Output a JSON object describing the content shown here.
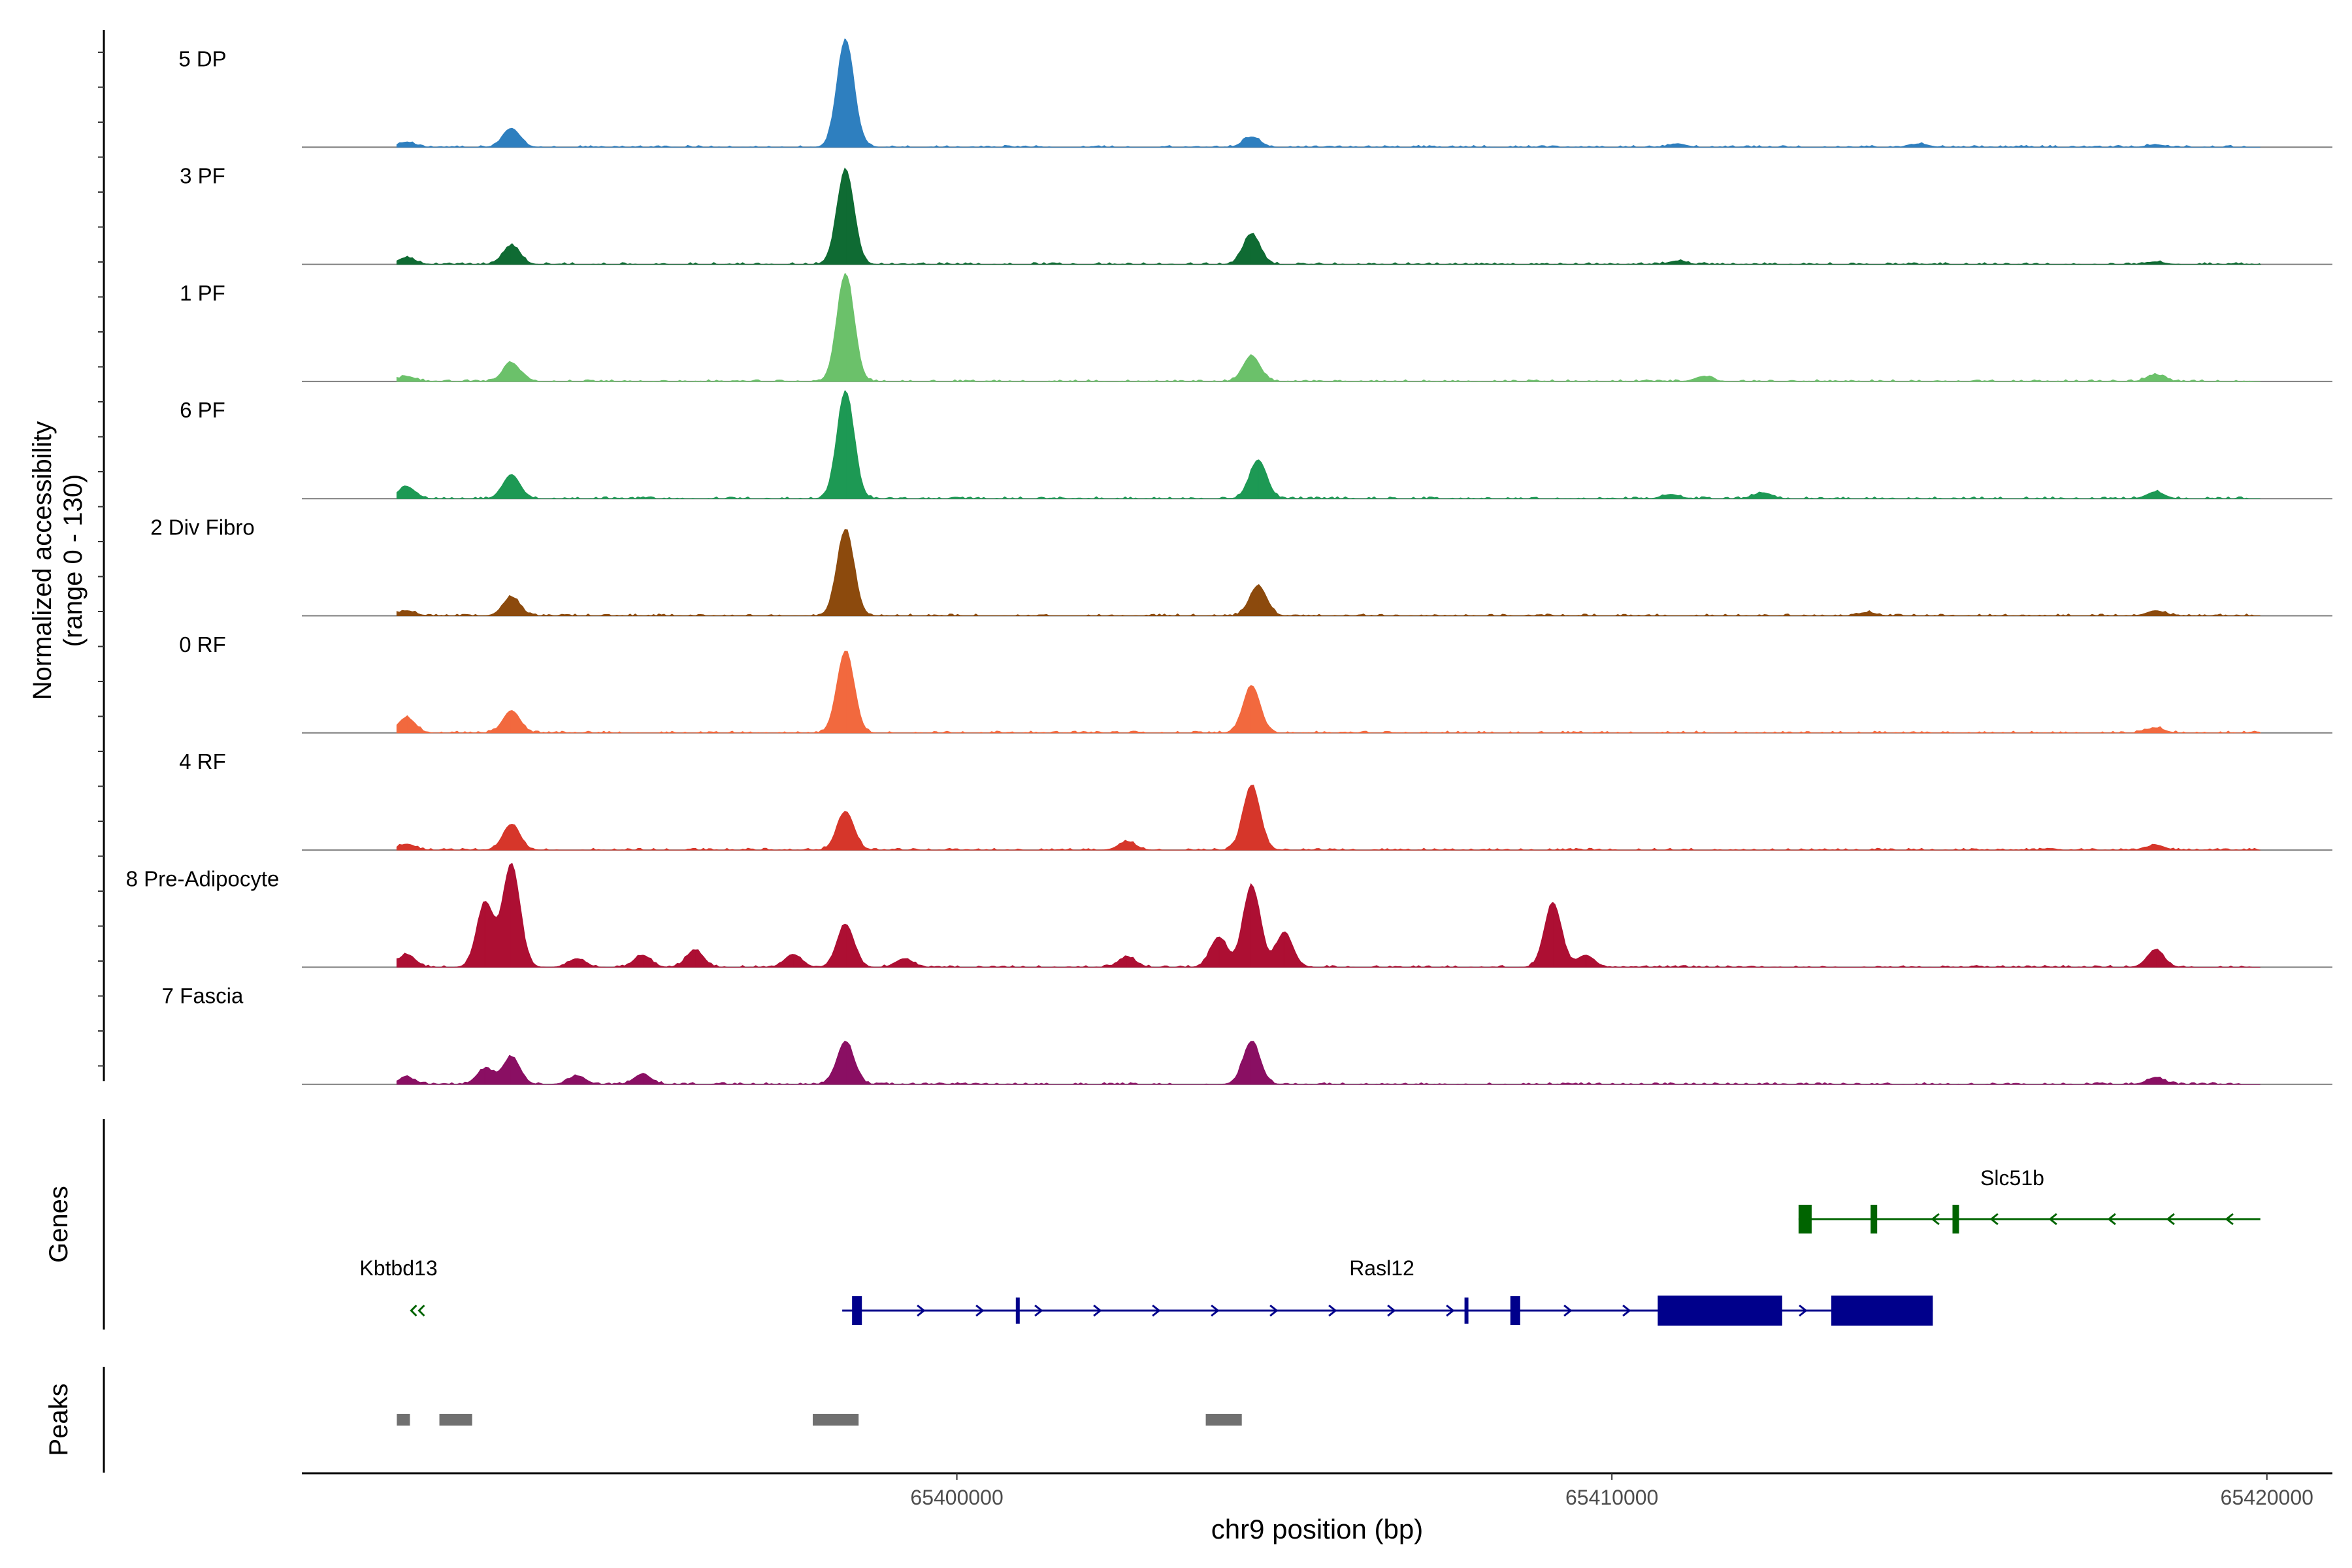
{
  "chart_data": {
    "type": "area",
    "title": "",
    "ylabel_line1": "Normalized accessibility",
    "ylabel_line2": "(range 0 - 130)",
    "xlabel": "chr9 position (bp)",
    "xlim": [
      65390000,
      65421000
    ],
    "ylim": [
      0,
      130
    ],
    "x_ticks": [
      65400000,
      65410000,
      65420000
    ],
    "x_tick_labels": [
      "65400000",
      "65410000",
      "65420000"
    ],
    "tracks": [
      {
        "name": "5 DP",
        "color": "#2e7fbf",
        "peaks": [
          [
            65391600,
            6
          ],
          [
            65393200,
            22
          ],
          [
            65398300,
            125
          ],
          [
            65404500,
            12
          ],
          [
            65411000,
            4
          ],
          [
            65414700,
            4
          ],
          [
            65418300,
            3
          ]
        ]
      },
      {
        "name": "3 PF",
        "color": "#0f6b33",
        "peaks": [
          [
            65391600,
            8
          ],
          [
            65393200,
            22
          ],
          [
            65398300,
            110
          ],
          [
            65404500,
            35
          ],
          [
            65411000,
            4
          ],
          [
            65418300,
            3
          ]
        ]
      },
      {
        "name": "1 PF",
        "color": "#6bc16a",
        "peaks": [
          [
            65391600,
            6
          ],
          [
            65393200,
            22
          ],
          [
            65398300,
            125
          ],
          [
            65404500,
            30
          ],
          [
            65411400,
            6
          ],
          [
            65418300,
            8
          ]
        ]
      },
      {
        "name": "6 PF",
        "color": "#1d9954",
        "peaks": [
          [
            65391600,
            14
          ],
          [
            65393200,
            28
          ],
          [
            65398300,
            125
          ],
          [
            65404600,
            45
          ],
          [
            65410900,
            5
          ],
          [
            65412300,
            7
          ],
          [
            65418300,
            8
          ]
        ]
      },
      {
        "name": "2 Div Fibro",
        "color": "#8c4a0d",
        "peaks": [
          [
            65391600,
            6
          ],
          [
            65393200,
            22
          ],
          [
            65398300,
            100
          ],
          [
            65404600,
            35
          ],
          [
            65413900,
            4
          ],
          [
            65418300,
            6
          ]
        ]
      },
      {
        "name": "0 RF",
        "color": "#f2693e",
        "peaks": [
          [
            65391600,
            18
          ],
          [
            65393200,
            26
          ],
          [
            65398300,
            95
          ],
          [
            65404500,
            55
          ],
          [
            65418300,
            6
          ]
        ]
      },
      {
        "name": "4 RF",
        "color": "#d6362a",
        "peaks": [
          [
            65391600,
            7
          ],
          [
            65393200,
            30
          ],
          [
            65398300,
            45
          ],
          [
            65402600,
            10
          ],
          [
            65404500,
            75
          ],
          [
            65418300,
            6
          ]
        ]
      },
      {
        "name": "8 Pre-Adipocyte",
        "color": "#ad0f33",
        "peaks": [
          [
            65391600,
            15
          ],
          [
            65392800,
            75
          ],
          [
            65393200,
            120
          ],
          [
            65394200,
            10
          ],
          [
            65395200,
            14
          ],
          [
            65396000,
            20
          ],
          [
            65397500,
            15
          ],
          [
            65398300,
            50
          ],
          [
            65399200,
            10
          ],
          [
            65402600,
            12
          ],
          [
            65404000,
            35
          ],
          [
            65404500,
            95
          ],
          [
            65405000,
            40
          ],
          [
            65409100,
            75
          ],
          [
            65409600,
            14
          ],
          [
            65418300,
            20
          ]
        ]
      },
      {
        "name": "7 Fascia",
        "color": "#8a0f63",
        "peaks": [
          [
            65391600,
            8
          ],
          [
            65392800,
            18
          ],
          [
            65393200,
            32
          ],
          [
            65394200,
            10
          ],
          [
            65395200,
            12
          ],
          [
            65398300,
            50
          ],
          [
            65404500,
            50
          ],
          [
            65418300,
            8
          ]
        ]
      }
    ],
    "genes_label": "Genes",
    "genes": [
      {
        "name": "Slc51b",
        "strand": "-",
        "color": "#006400",
        "start": 65412850,
        "end": 65419900,
        "exons": [
          [
            65412850,
            65413050
          ],
          [
            65413950,
            65414050
          ],
          [
            65415200,
            65415300
          ]
        ]
      },
      {
        "name": "Kbtbd13",
        "strand": "-",
        "color": "#006400",
        "start": 65391550,
        "end": 65391850,
        "exons": []
      },
      {
        "name": "Rasl12",
        "strand": "+",
        "color": "#00008b",
        "start": 65398250,
        "end": 65414900,
        "exons": [
          [
            65398400,
            65398550
          ],
          [
            65400900,
            65400950
          ],
          [
            65407750,
            65407800
          ],
          [
            65408450,
            65408600
          ],
          [
            65410700,
            65412600
          ],
          [
            65413350,
            65414900
          ]
        ]
      }
    ],
    "peaks_label": "Peaks",
    "peak_regions": [
      [
        65391450,
        65391650
      ],
      [
        65392100,
        65392600
      ],
      [
        65397800,
        65398500
      ],
      [
        65403800,
        65404350
      ]
    ]
  }
}
